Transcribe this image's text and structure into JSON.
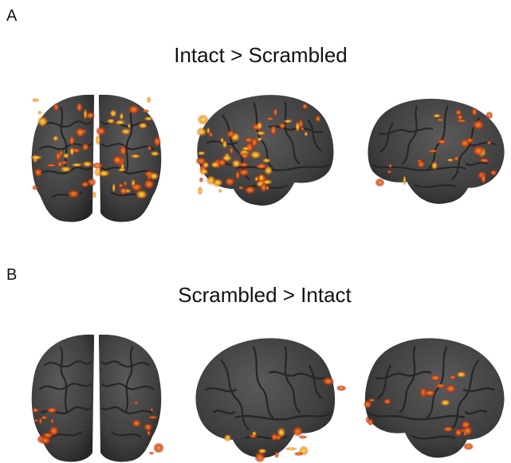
{
  "panels": [
    {
      "label": "A",
      "title": "Intact > Scrambled"
    },
    {
      "label": "B",
      "title": "Scrambled > Intact"
    }
  ]
}
